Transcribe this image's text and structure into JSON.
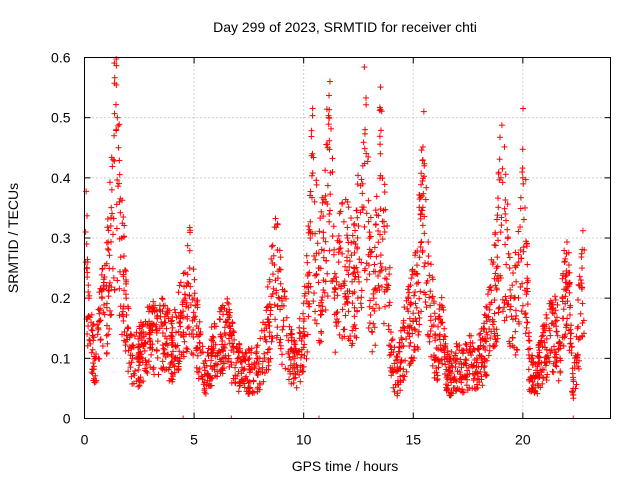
{
  "chart_data": {
    "type": "scatter",
    "title": "Day 299 of 2023, SRMTID for receiver chti",
    "xlabel": "GPS time / hours",
    "ylabel": "SRMTID / TECUs",
    "xlim": [
      0,
      24
    ],
    "ylim": [
      0,
      0.6
    ],
    "xticks": [
      0,
      5,
      10,
      15,
      20
    ],
    "yticks": [
      0,
      0.1,
      0.2,
      0.3,
      0.4,
      0.5,
      0.6
    ],
    "xtick_labels": [
      "0",
      "5",
      "10",
      "15",
      "20"
    ],
    "ytick_labels": [
      "0",
      "0.1",
      "0.2",
      "0.3",
      "0.4",
      "0.5",
      "0.6"
    ],
    "grid": true,
    "marker": "+",
    "series": [
      {
        "name": "SRMTID",
        "color": "#ff0000",
        "anchor_points": [
          [
            0.05,
            0.31
          ],
          [
            0.1,
            0.29
          ],
          [
            0.15,
            0.26
          ],
          [
            0.2,
            0.2
          ],
          [
            0.3,
            0.16
          ],
          [
            0.4,
            0.13
          ],
          [
            0.5,
            0.1
          ],
          [
            0.6,
            0.14
          ],
          [
            0.7,
            0.18
          ],
          [
            0.8,
            0.2
          ],
          [
            1.0,
            0.22
          ],
          [
            1.1,
            0.28
          ],
          [
            1.2,
            0.32
          ],
          [
            1.25,
            0.38
          ],
          [
            1.3,
            0.43
          ],
          [
            1.35,
            0.47
          ],
          [
            1.45,
            0.48
          ],
          [
            1.5,
            0.5
          ],
          [
            1.55,
            0.45
          ],
          [
            1.6,
            0.36
          ],
          [
            1.7,
            0.3
          ],
          [
            1.8,
            0.27
          ],
          [
            1.9,
            0.2
          ],
          [
            2.0,
            0.15
          ],
          [
            2.2,
            0.1
          ],
          [
            2.5,
            0.12
          ],
          [
            2.8,
            0.14
          ],
          [
            3.0,
            0.15
          ],
          [
            3.5,
            0.16
          ],
          [
            4.0,
            0.13
          ],
          [
            4.3,
            0.17
          ],
          [
            4.6,
            0.2
          ],
          [
            4.8,
            0.25
          ],
          [
            5.0,
            0.2
          ],
          [
            5.2,
            0.15
          ],
          [
            5.5,
            0.08
          ],
          [
            5.8,
            0.12
          ],
          [
            6.2,
            0.14
          ],
          [
            6.5,
            0.16
          ],
          [
            6.8,
            0.12
          ],
          [
            7.0,
            0.1
          ],
          [
            7.5,
            0.09
          ],
          [
            8.0,
            0.1
          ],
          [
            8.3,
            0.15
          ],
          [
            8.6,
            0.24
          ],
          [
            8.8,
            0.28
          ],
          [
            9.0,
            0.2
          ],
          [
            9.3,
            0.13
          ],
          [
            9.6,
            0.1
          ],
          [
            10.0,
            0.15
          ],
          [
            10.2,
            0.24
          ],
          [
            10.3,
            0.3
          ],
          [
            10.4,
            0.44
          ],
          [
            10.5,
            0.36
          ],
          [
            10.7,
            0.25
          ],
          [
            10.9,
            0.3
          ],
          [
            11.0,
            0.37
          ],
          [
            11.1,
            0.45
          ],
          [
            11.15,
            0.5
          ],
          [
            11.2,
            0.56
          ],
          [
            11.4,
            0.2
          ],
          [
            11.6,
            0.26
          ],
          [
            12.0,
            0.3
          ],
          [
            12.3,
            0.25
          ],
          [
            12.5,
            0.32
          ],
          [
            12.7,
            0.42
          ],
          [
            12.8,
            0.48
          ],
          [
            13.0,
            0.3
          ],
          [
            13.2,
            0.2
          ],
          [
            13.5,
            0.44
          ],
          [
            13.7,
            0.31
          ],
          [
            13.9,
            0.24
          ],
          [
            14.0,
            0.11
          ],
          [
            14.3,
            0.08
          ],
          [
            14.6,
            0.15
          ],
          [
            14.9,
            0.19
          ],
          [
            15.2,
            0.24
          ],
          [
            15.4,
            0.37
          ],
          [
            15.5,
            0.42
          ],
          [
            15.7,
            0.27
          ],
          [
            16.0,
            0.13
          ],
          [
            16.3,
            0.16
          ],
          [
            16.6,
            0.08
          ],
          [
            17.0,
            0.1
          ],
          [
            17.3,
            0.09
          ],
          [
            17.6,
            0.11
          ],
          [
            17.9,
            0.1
          ],
          [
            18.2,
            0.12
          ],
          [
            18.5,
            0.19
          ],
          [
            18.8,
            0.25
          ],
          [
            19.0,
            0.4
          ],
          [
            19.2,
            0.34
          ],
          [
            19.4,
            0.25
          ],
          [
            19.6,
            0.2
          ],
          [
            19.9,
            0.28
          ],
          [
            20.0,
            0.4
          ],
          [
            20.1,
            0.35
          ],
          [
            20.3,
            0.1
          ],
          [
            20.6,
            0.08
          ],
          [
            20.9,
            0.12
          ],
          [
            21.2,
            0.15
          ],
          [
            21.5,
            0.18
          ],
          [
            21.7,
            0.1
          ],
          [
            21.9,
            0.26
          ],
          [
            22.1,
            0.22
          ],
          [
            22.3,
            0.05
          ],
          [
            22.5,
            0.15
          ],
          [
            22.7,
            0.25
          ],
          [
            22.8,
            0.28
          ]
        ],
        "points": []
      }
    ],
    "zero_markers_x": [
      4.5,
      6.7,
      10.7,
      22.3
    ]
  }
}
